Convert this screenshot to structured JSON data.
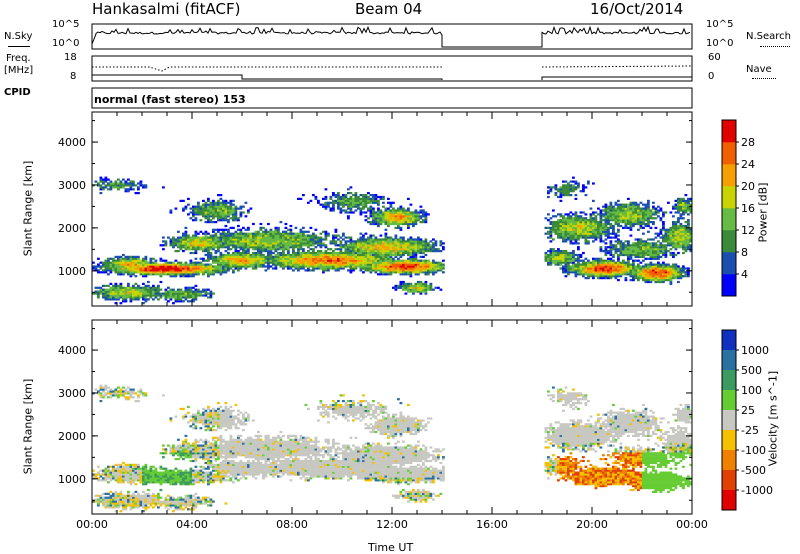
{
  "header": {
    "radar": "Hankasalmi (fitACF)",
    "beam": "Beam 04",
    "date": "16/Oct/2014"
  },
  "top_panels": {
    "nsky_label": "N.Sky",
    "nsearch_label": "N.Search",
    "nsky_ticks": [
      "10^5",
      "10^0"
    ],
    "nsearch_ticks": [
      "10^5",
      "10^0"
    ],
    "freq_label": "Freq.",
    "freq_unit": "[MHz]",
    "freq_ticks": [
      "18",
      "8"
    ],
    "nave_label": "Nave",
    "nave_ticks": [
      "60",
      "0"
    ],
    "cpid_label": "CPID",
    "cpid_text": "normal (fast stereo) 153"
  },
  "colors": {
    "gap_none": "#ffffff",
    "ground_scatter": "#c8c8c2"
  },
  "chart_data": [
    {
      "type": "heatmap",
      "title": "",
      "xlabel": "Time UT",
      "ylabel": "Slant Range [km]",
      "x_ticks": [
        "00:00",
        "04:00",
        "08:00",
        "12:00",
        "16:00",
        "20:00",
        "00:00"
      ],
      "x_range_hours": [
        0,
        24
      ],
      "y_ticks": [
        1000,
        2000,
        3000,
        4000
      ],
      "ylim": [
        180,
        4700
      ],
      "data_gap_hours": [
        14.0,
        18.0
      ],
      "colorbar": {
        "label": "Power [dB]",
        "ticks": [
          "4",
          "8",
          "12",
          "16",
          "20",
          "24",
          "28"
        ],
        "colors": [
          "#0000ff",
          "#1a4fb0",
          "#3a8a3a",
          "#66bb44",
          "#c8d400",
          "#f5a000",
          "#f06000",
          "#e00000"
        ]
      }
    },
    {
      "type": "heatmap",
      "title": "",
      "xlabel": "Time UT",
      "ylabel": "Slant Range [km]",
      "x_ticks": [
        "00:00",
        "04:00",
        "08:00",
        "12:00",
        "16:00",
        "20:00",
        "00:00"
      ],
      "x_range_hours": [
        0,
        24
      ],
      "y_ticks": [
        1000,
        2000,
        3000,
        4000
      ],
      "ylim": [
        180,
        4700
      ],
      "data_gap_hours": [
        14.0,
        18.0
      ],
      "colorbar": {
        "label": "Velocity [m s^-1]",
        "ticks": [
          "1000",
          "500",
          "100",
          "25",
          "-25",
          "-100",
          "-500",
          "-1000"
        ],
        "colors": [
          "#1030c0",
          "#2a70a0",
          "#3a9a60",
          "#66cc33",
          "#c8c8c2",
          "#f5c000",
          "#f08000",
          "#e04000",
          "#e00000"
        ]
      }
    }
  ]
}
